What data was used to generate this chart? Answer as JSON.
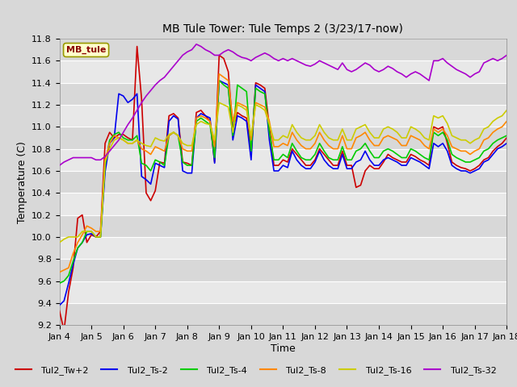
{
  "title": "MB Tule Tower: Tule Temps 2 (3/23/17-now)",
  "xlabel": "Time",
  "ylabel": "Temperature (C)",
  "annotation": "MB_tule",
  "ylim": [
    9.2,
    11.8
  ],
  "series_names": [
    "Tul2_Tw+2",
    "Tul2_Ts-2",
    "Tul2_Ts-4",
    "Tul2_Ts-8",
    "Tul2_Ts-16",
    "Tul2_Ts-32"
  ],
  "colors": [
    "#cc0000",
    "#0000ee",
    "#00cc00",
    "#ff8800",
    "#cccc00",
    "#aa00cc"
  ],
  "xtick_labels": [
    "Jan 4",
    "Jan 5",
    "Jan 6",
    "Jan 7",
    "Jan 8",
    "Jan 9",
    "Jan 10",
    "Jan 11",
    "Jan 12",
    "Jan 13",
    "Jan 14",
    "Jan 15",
    "Jan 16",
    "Jan 17",
    "Jan 18"
  ],
  "data": {
    "Tul2_Tw+2": [
      9.33,
      9.15,
      9.5,
      9.72,
      10.17,
      10.2,
      9.95,
      10.02,
      10.0,
      10.05,
      10.85,
      10.95,
      10.9,
      10.93,
      10.93,
      10.9,
      10.88,
      11.73,
      11.25,
      10.4,
      10.33,
      10.42,
      10.68,
      10.67,
      11.1,
      11.12,
      11.08,
      10.68,
      10.67,
      10.65,
      11.13,
      11.15,
      11.1,
      11.05,
      10.68,
      11.65,
      11.62,
      11.5,
      10.98,
      11.13,
      11.1,
      11.08,
      10.75,
      11.4,
      11.38,
      11.35,
      11.0,
      10.65,
      10.65,
      10.7,
      10.68,
      10.8,
      10.75,
      10.7,
      10.65,
      10.65,
      10.7,
      10.8,
      10.75,
      10.7,
      10.65,
      10.65,
      10.78,
      10.65,
      10.65,
      10.45,
      10.47,
      10.6,
      10.65,
      10.62,
      10.62,
      10.68,
      10.75,
      10.72,
      10.7,
      10.68,
      10.68,
      10.75,
      10.73,
      10.7,
      10.68,
      10.65,
      11.0,
      10.98,
      11.0,
      10.85,
      10.68,
      10.65,
      10.63,
      10.62,
      10.6,
      10.62,
      10.65,
      10.7,
      10.72,
      10.78,
      10.82,
      10.85,
      10.9
    ],
    "Tul2_Ts-2": [
      9.38,
      9.42,
      9.58,
      9.75,
      9.9,
      9.95,
      10.02,
      10.03,
      10.0,
      10.0,
      10.59,
      10.85,
      10.9,
      11.3,
      11.28,
      11.22,
      11.25,
      11.3,
      10.55,
      10.52,
      10.48,
      10.67,
      10.65,
      10.63,
      11.05,
      11.1,
      11.07,
      10.6,
      10.58,
      10.58,
      11.08,
      11.12,
      11.1,
      11.08,
      10.67,
      11.42,
      11.4,
      11.38,
      10.88,
      11.1,
      11.08,
      11.05,
      10.7,
      11.38,
      11.35,
      11.32,
      10.88,
      10.6,
      10.6,
      10.65,
      10.63,
      10.78,
      10.7,
      10.65,
      10.62,
      10.62,
      10.68,
      10.78,
      10.7,
      10.65,
      10.62,
      10.62,
      10.75,
      10.62,
      10.62,
      10.68,
      10.7,
      10.78,
      10.7,
      10.65,
      10.65,
      10.7,
      10.72,
      10.7,
      10.68,
      10.65,
      10.65,
      10.72,
      10.7,
      10.68,
      10.65,
      10.62,
      10.85,
      10.82,
      10.85,
      10.78,
      10.65,
      10.62,
      10.6,
      10.6,
      10.58,
      10.6,
      10.62,
      10.68,
      10.7,
      10.75,
      10.8,
      10.82,
      10.85
    ],
    "Tul2_Ts-4": [
      9.58,
      9.6,
      9.65,
      9.78,
      9.9,
      9.95,
      10.05,
      10.05,
      10.0,
      10.0,
      10.65,
      10.88,
      10.93,
      10.95,
      10.9,
      10.88,
      10.88,
      10.92,
      10.67,
      10.65,
      10.6,
      10.7,
      10.68,
      10.65,
      10.92,
      10.95,
      10.92,
      10.68,
      10.65,
      10.65,
      11.05,
      11.08,
      11.05,
      11.02,
      10.72,
      11.42,
      11.38,
      11.35,
      10.92,
      11.38,
      11.35,
      11.32,
      10.78,
      11.35,
      11.32,
      11.3,
      10.95,
      10.7,
      10.7,
      10.75,
      10.72,
      10.85,
      10.78,
      10.72,
      10.7,
      10.7,
      10.75,
      10.85,
      10.78,
      10.72,
      10.7,
      10.7,
      10.82,
      10.7,
      10.7,
      10.78,
      10.8,
      10.85,
      10.78,
      10.72,
      10.72,
      10.78,
      10.8,
      10.78,
      10.75,
      10.72,
      10.72,
      10.8,
      10.78,
      10.75,
      10.72,
      10.7,
      10.95,
      10.92,
      10.95,
      10.88,
      10.75,
      10.72,
      10.7,
      10.68,
      10.68,
      10.7,
      10.72,
      10.78,
      10.8,
      10.85,
      10.88,
      10.9,
      10.92
    ],
    "Tul2_Ts-8": [
      9.68,
      9.7,
      9.72,
      9.85,
      9.95,
      10.02,
      10.1,
      10.08,
      10.05,
      10.05,
      10.7,
      10.85,
      10.92,
      10.9,
      10.88,
      10.85,
      10.85,
      10.88,
      10.8,
      10.78,
      10.75,
      10.82,
      10.8,
      10.78,
      10.92,
      10.95,
      10.92,
      10.8,
      10.78,
      10.78,
      11.08,
      11.1,
      11.08,
      11.05,
      10.82,
      11.48,
      11.45,
      11.42,
      11.05,
      11.22,
      11.2,
      11.18,
      10.88,
      11.22,
      11.2,
      11.18,
      11.05,
      10.82,
      10.82,
      10.85,
      10.83,
      10.95,
      10.88,
      10.83,
      10.8,
      10.8,
      10.85,
      10.95,
      10.88,
      10.83,
      10.8,
      10.8,
      10.92,
      10.8,
      10.8,
      10.9,
      10.92,
      10.95,
      10.88,
      10.83,
      10.83,
      10.9,
      10.92,
      10.9,
      10.88,
      10.83,
      10.83,
      10.92,
      10.9,
      10.88,
      10.83,
      10.8,
      10.98,
      10.95,
      10.98,
      10.92,
      10.82,
      10.8,
      10.78,
      10.78,
      10.75,
      10.78,
      10.8,
      10.88,
      10.9,
      10.95,
      10.98,
      11.0,
      11.05
    ],
    "Tul2_Ts-16": [
      9.95,
      9.98,
      10.0,
      10.0,
      10.0,
      10.05,
      10.05,
      10.05,
      10.0,
      10.0,
      10.68,
      10.8,
      10.88,
      10.9,
      10.88,
      10.85,
      10.85,
      10.88,
      10.85,
      10.83,
      10.82,
      10.9,
      10.88,
      10.87,
      10.93,
      10.95,
      10.92,
      10.85,
      10.83,
      10.83,
      11.02,
      11.05,
      11.03,
      11.02,
      10.88,
      11.22,
      11.2,
      11.18,
      10.95,
      11.2,
      11.18,
      11.15,
      10.92,
      11.2,
      11.18,
      11.15,
      11.02,
      10.88,
      10.88,
      10.92,
      10.9,
      11.02,
      10.95,
      10.9,
      10.88,
      10.88,
      10.92,
      11.02,
      10.95,
      10.9,
      10.88,
      10.88,
      10.98,
      10.88,
      10.88,
      10.98,
      11.0,
      11.02,
      10.95,
      10.9,
      10.9,
      10.98,
      11.0,
      10.98,
      10.95,
      10.9,
      10.9,
      11.0,
      10.98,
      10.95,
      10.9,
      10.88,
      11.1,
      11.08,
      11.1,
      11.03,
      10.92,
      10.9,
      10.88,
      10.88,
      10.85,
      10.88,
      10.9,
      10.98,
      11.0,
      11.05,
      11.08,
      11.1,
      11.15
    ],
    "Tul2_Ts-32": [
      10.65,
      10.68,
      10.7,
      10.72,
      10.72,
      10.72,
      10.72,
      10.72,
      10.7,
      10.7,
      10.73,
      10.78,
      10.83,
      10.88,
      10.95,
      11.02,
      11.08,
      11.15,
      11.22,
      11.28,
      11.33,
      11.38,
      11.42,
      11.45,
      11.5,
      11.55,
      11.6,
      11.65,
      11.68,
      11.7,
      11.75,
      11.73,
      11.7,
      11.68,
      11.65,
      11.65,
      11.68,
      11.7,
      11.68,
      11.65,
      11.63,
      11.62,
      11.6,
      11.63,
      11.65,
      11.67,
      11.65,
      11.62,
      11.6,
      11.62,
      11.6,
      11.62,
      11.6,
      11.58,
      11.56,
      11.55,
      11.57,
      11.6,
      11.58,
      11.56,
      11.54,
      11.52,
      11.58,
      11.52,
      11.5,
      11.52,
      11.55,
      11.58,
      11.56,
      11.52,
      11.5,
      11.52,
      11.55,
      11.53,
      11.5,
      11.48,
      11.45,
      11.48,
      11.5,
      11.48,
      11.45,
      11.42,
      11.6,
      11.6,
      11.62,
      11.58,
      11.55,
      11.52,
      11.5,
      11.48,
      11.45,
      11.48,
      11.5,
      11.58,
      11.6,
      11.62,
      11.6,
      11.62,
      11.65
    ]
  }
}
